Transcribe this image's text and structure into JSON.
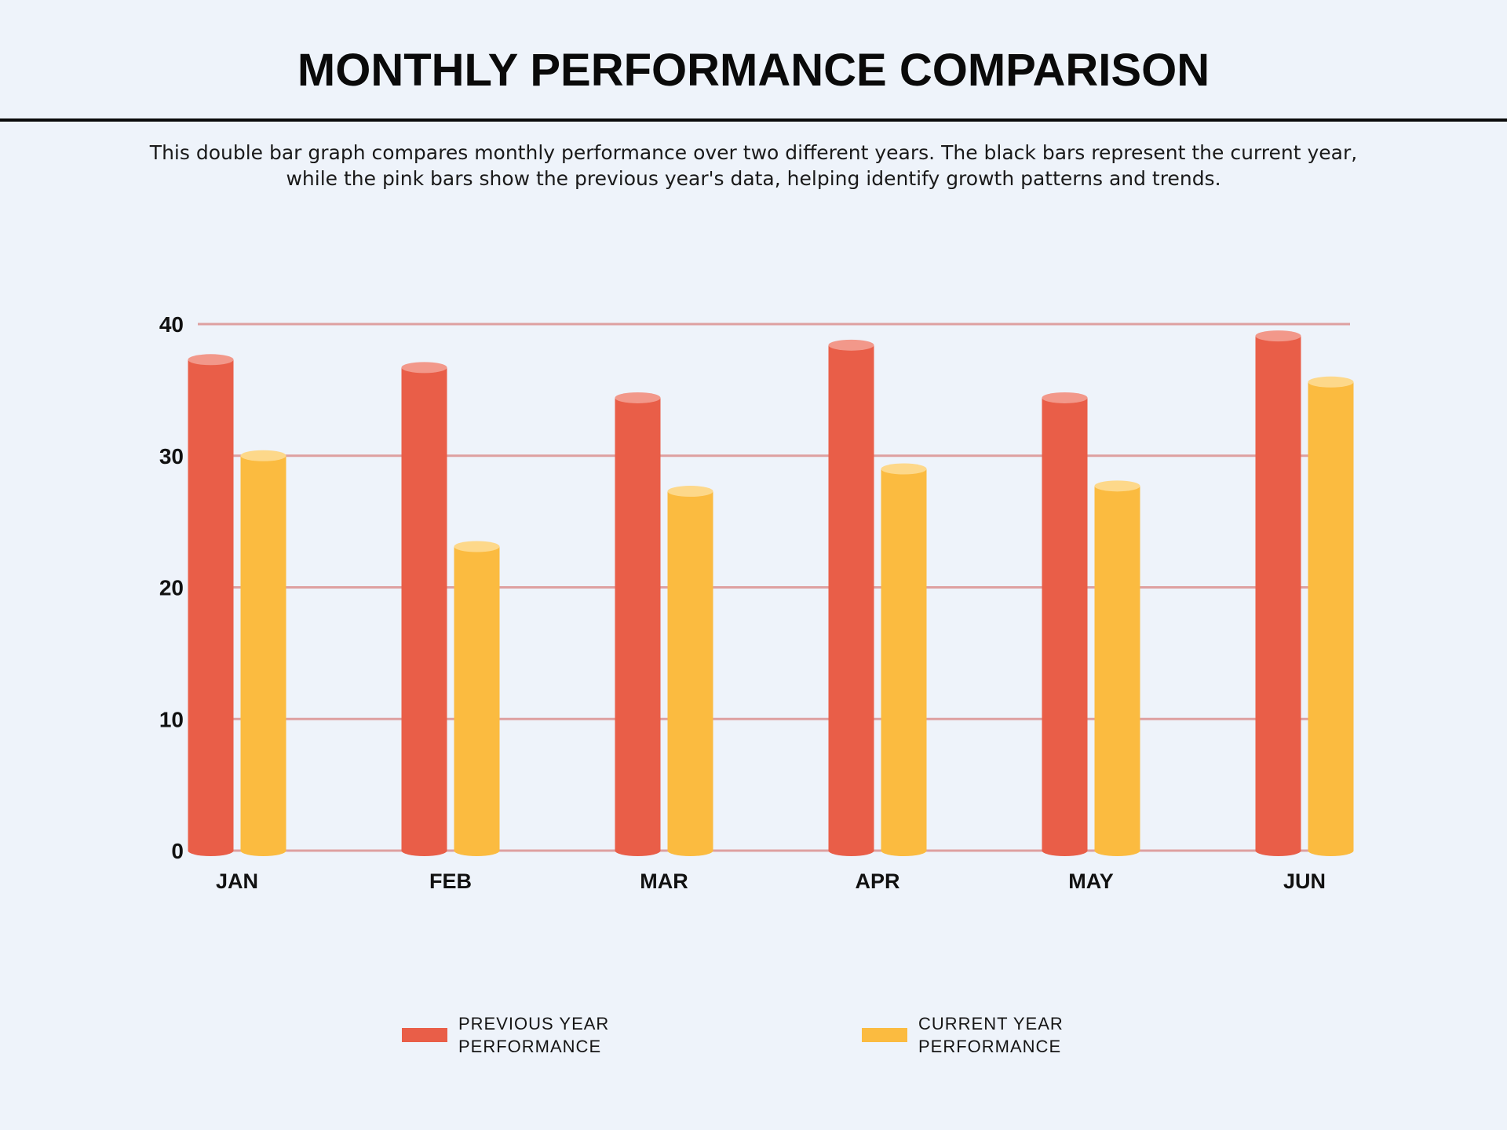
{
  "title": "MONTHLY PERFORMANCE COMPARISON",
  "description": "This double bar graph compares monthly performance over two different years. The black bars represent the current year, while the pink bars show the previous year's data, helping identify growth patterns and trends.",
  "colors": {
    "previous": "#e95e48",
    "previous_top": "#f2988a",
    "current": "#fbbb40",
    "current_top": "#fdd88a",
    "grid": "#dea0a0",
    "background": "#eef3fa"
  },
  "legend": {
    "previous_label": "PREVIOUS YEAR PERFORMANCE",
    "current_label": "CURRENT YEAR PERFORMANCE"
  },
  "chart_data": {
    "type": "bar",
    "categories": [
      "JAN",
      "FEB",
      "MAR",
      "APR",
      "MAY",
      "JUN"
    ],
    "series": [
      {
        "name": "PREVIOUS YEAR PERFORMANCE",
        "values": [
          37.3,
          36.7,
          34.4,
          38.4,
          34.4,
          39.1
        ]
      },
      {
        "name": "CURRENT YEAR PERFORMANCE",
        "values": [
          30.0,
          23.1,
          27.3,
          29.0,
          27.7,
          35.6
        ]
      }
    ],
    "yticks": [
      0,
      10,
      20,
      30,
      40
    ],
    "ylim": [
      0,
      40
    ],
    "grid": true,
    "legend_position": "bottom"
  }
}
